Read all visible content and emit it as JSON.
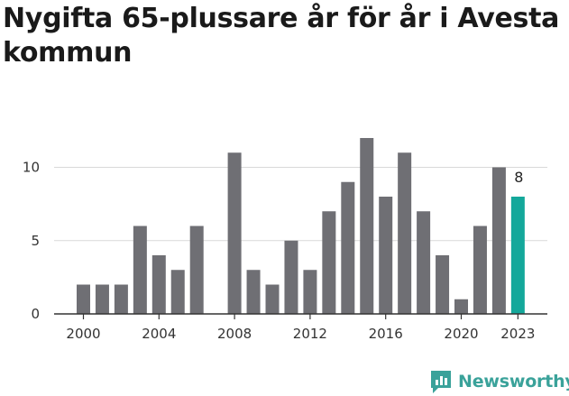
{
  "title": "Nygifta 65-plussare år för år i Avesta kommun",
  "brand": {
    "name": "Newsworthy",
    "icon": "newsworthy-logo-icon",
    "color": "#3aa29a"
  },
  "chart_data": {
    "type": "bar",
    "title": "Nygifta 65-plussare år för år i Avesta kommun",
    "xlabel": "",
    "ylabel": "",
    "ylim": [
      0,
      12
    ],
    "yticks": [
      0,
      5,
      10
    ],
    "grid": true,
    "x_tick_labels": [
      "2000",
      "2004",
      "2008",
      "2012",
      "2016",
      "2020",
      "2023"
    ],
    "categories": [
      "2000",
      "2001",
      "2002",
      "2003",
      "2004",
      "2005",
      "2006",
      "2007",
      "2008",
      "2009",
      "2010",
      "2011",
      "2012",
      "2013",
      "2014",
      "2015",
      "2016",
      "2017",
      "2018",
      "2019",
      "2020",
      "2021",
      "2022",
      "2023"
    ],
    "values": [
      2,
      2,
      2,
      6,
      4,
      3,
      6,
      0,
      11,
      3,
      2,
      5,
      3,
      7,
      9,
      12,
      8,
      11,
      7,
      4,
      1,
      6,
      10,
      8
    ],
    "highlight_index": 23,
    "highlight_label": "8",
    "colors": {
      "bar": "#6f6f74",
      "highlight": "#14a89b",
      "grid": "#d9d9d9",
      "axis": "#333333"
    }
  }
}
